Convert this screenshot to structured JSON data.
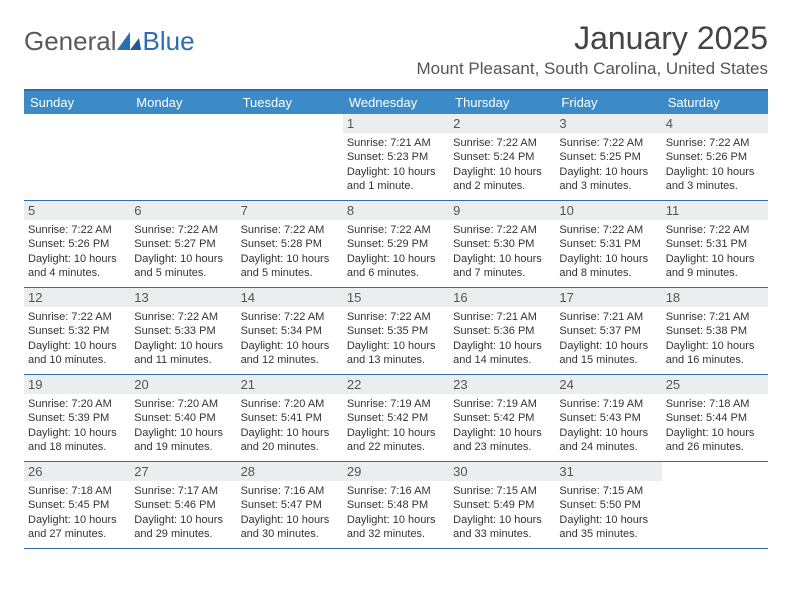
{
  "brand": {
    "general": "General",
    "blue": "Blue"
  },
  "title": "January 2025",
  "location": "Mount Pleasant, South Carolina, United States",
  "colors": {
    "header_bg": "#3b8bc9",
    "border": "#2c6fb0",
    "daynum_bg": "#ecedee",
    "text": "#333333",
    "title_color": "#444444"
  },
  "dayHeaders": [
    "Sunday",
    "Monday",
    "Tuesday",
    "Wednesday",
    "Thursday",
    "Friday",
    "Saturday"
  ],
  "weeks": [
    [
      {
        "empty": true
      },
      {
        "empty": true
      },
      {
        "empty": true
      },
      {
        "d": "1",
        "sr": "7:21 AM",
        "ss": "5:23 PM",
        "dl": "10 hours and 1 minute."
      },
      {
        "d": "2",
        "sr": "7:22 AM",
        "ss": "5:24 PM",
        "dl": "10 hours and 2 minutes."
      },
      {
        "d": "3",
        "sr": "7:22 AM",
        "ss": "5:25 PM",
        "dl": "10 hours and 3 minutes."
      },
      {
        "d": "4",
        "sr": "7:22 AM",
        "ss": "5:26 PM",
        "dl": "10 hours and 3 minutes."
      }
    ],
    [
      {
        "d": "5",
        "sr": "7:22 AM",
        "ss": "5:26 PM",
        "dl": "10 hours and 4 minutes."
      },
      {
        "d": "6",
        "sr": "7:22 AM",
        "ss": "5:27 PM",
        "dl": "10 hours and 5 minutes."
      },
      {
        "d": "7",
        "sr": "7:22 AM",
        "ss": "5:28 PM",
        "dl": "10 hours and 5 minutes."
      },
      {
        "d": "8",
        "sr": "7:22 AM",
        "ss": "5:29 PM",
        "dl": "10 hours and 6 minutes."
      },
      {
        "d": "9",
        "sr": "7:22 AM",
        "ss": "5:30 PM",
        "dl": "10 hours and 7 minutes."
      },
      {
        "d": "10",
        "sr": "7:22 AM",
        "ss": "5:31 PM",
        "dl": "10 hours and 8 minutes."
      },
      {
        "d": "11",
        "sr": "7:22 AM",
        "ss": "5:31 PM",
        "dl": "10 hours and 9 minutes."
      }
    ],
    [
      {
        "d": "12",
        "sr": "7:22 AM",
        "ss": "5:32 PM",
        "dl": "10 hours and 10 minutes."
      },
      {
        "d": "13",
        "sr": "7:22 AM",
        "ss": "5:33 PM",
        "dl": "10 hours and 11 minutes."
      },
      {
        "d": "14",
        "sr": "7:22 AM",
        "ss": "5:34 PM",
        "dl": "10 hours and 12 minutes."
      },
      {
        "d": "15",
        "sr": "7:22 AM",
        "ss": "5:35 PM",
        "dl": "10 hours and 13 minutes."
      },
      {
        "d": "16",
        "sr": "7:21 AM",
        "ss": "5:36 PM",
        "dl": "10 hours and 14 minutes."
      },
      {
        "d": "17",
        "sr": "7:21 AM",
        "ss": "5:37 PM",
        "dl": "10 hours and 15 minutes."
      },
      {
        "d": "18",
        "sr": "7:21 AM",
        "ss": "5:38 PM",
        "dl": "10 hours and 16 minutes."
      }
    ],
    [
      {
        "d": "19",
        "sr": "7:20 AM",
        "ss": "5:39 PM",
        "dl": "10 hours and 18 minutes."
      },
      {
        "d": "20",
        "sr": "7:20 AM",
        "ss": "5:40 PM",
        "dl": "10 hours and 19 minutes."
      },
      {
        "d": "21",
        "sr": "7:20 AM",
        "ss": "5:41 PM",
        "dl": "10 hours and 20 minutes."
      },
      {
        "d": "22",
        "sr": "7:19 AM",
        "ss": "5:42 PM",
        "dl": "10 hours and 22 minutes."
      },
      {
        "d": "23",
        "sr": "7:19 AM",
        "ss": "5:42 PM",
        "dl": "10 hours and 23 minutes."
      },
      {
        "d": "24",
        "sr": "7:19 AM",
        "ss": "5:43 PM",
        "dl": "10 hours and 24 minutes."
      },
      {
        "d": "25",
        "sr": "7:18 AM",
        "ss": "5:44 PM",
        "dl": "10 hours and 26 minutes."
      }
    ],
    [
      {
        "d": "26",
        "sr": "7:18 AM",
        "ss": "5:45 PM",
        "dl": "10 hours and 27 minutes."
      },
      {
        "d": "27",
        "sr": "7:17 AM",
        "ss": "5:46 PM",
        "dl": "10 hours and 29 minutes."
      },
      {
        "d": "28",
        "sr": "7:16 AM",
        "ss": "5:47 PM",
        "dl": "10 hours and 30 minutes."
      },
      {
        "d": "29",
        "sr": "7:16 AM",
        "ss": "5:48 PM",
        "dl": "10 hours and 32 minutes."
      },
      {
        "d": "30",
        "sr": "7:15 AM",
        "ss": "5:49 PM",
        "dl": "10 hours and 33 minutes."
      },
      {
        "d": "31",
        "sr": "7:15 AM",
        "ss": "5:50 PM",
        "dl": "10 hours and 35 minutes."
      },
      {
        "empty": true
      }
    ]
  ],
  "labels": {
    "sunrise": "Sunrise:",
    "sunset": "Sunset:",
    "daylight": "Daylight:"
  }
}
